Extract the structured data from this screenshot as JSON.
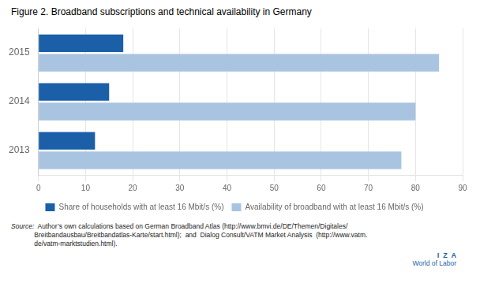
{
  "chart_data": {
    "type": "bar",
    "orientation": "horizontal",
    "title": "Figure 2. Broadband subscriptions and technical availability in Germany",
    "categories": [
      "2013",
      "2014",
      "2015"
    ],
    "series": [
      {
        "name": "Share of households with at least 16 Mbit/s (%)",
        "color": "#1a5fa8",
        "values": [
          12,
          15,
          18
        ]
      },
      {
        "name": "Availability of broadband with at least 16 Mbit/s (%)",
        "color": "#a8c4e0",
        "values": [
          77,
          80,
          85
        ]
      }
    ],
    "xlim": [
      0,
      90
    ],
    "xticks": [
      0,
      10,
      20,
      30,
      40,
      50,
      60,
      70,
      80,
      90
    ],
    "grid": true,
    "legend": "bottom",
    "annotations": [
      "Source:",
      "  Author’s own calculations based on German Broadband Atlas (http://www.bmvi.de/DE/Themen/Digitales/\nBreitbandausbau/Breitbandatlas-Karte/start.html);  and  Dialog Consult/VATM Market Analysis  (http://www.vatm.\nde/vatm-marktstudien.html).",
      "I  Z  A",
      "World of Labor"
    ]
  }
}
